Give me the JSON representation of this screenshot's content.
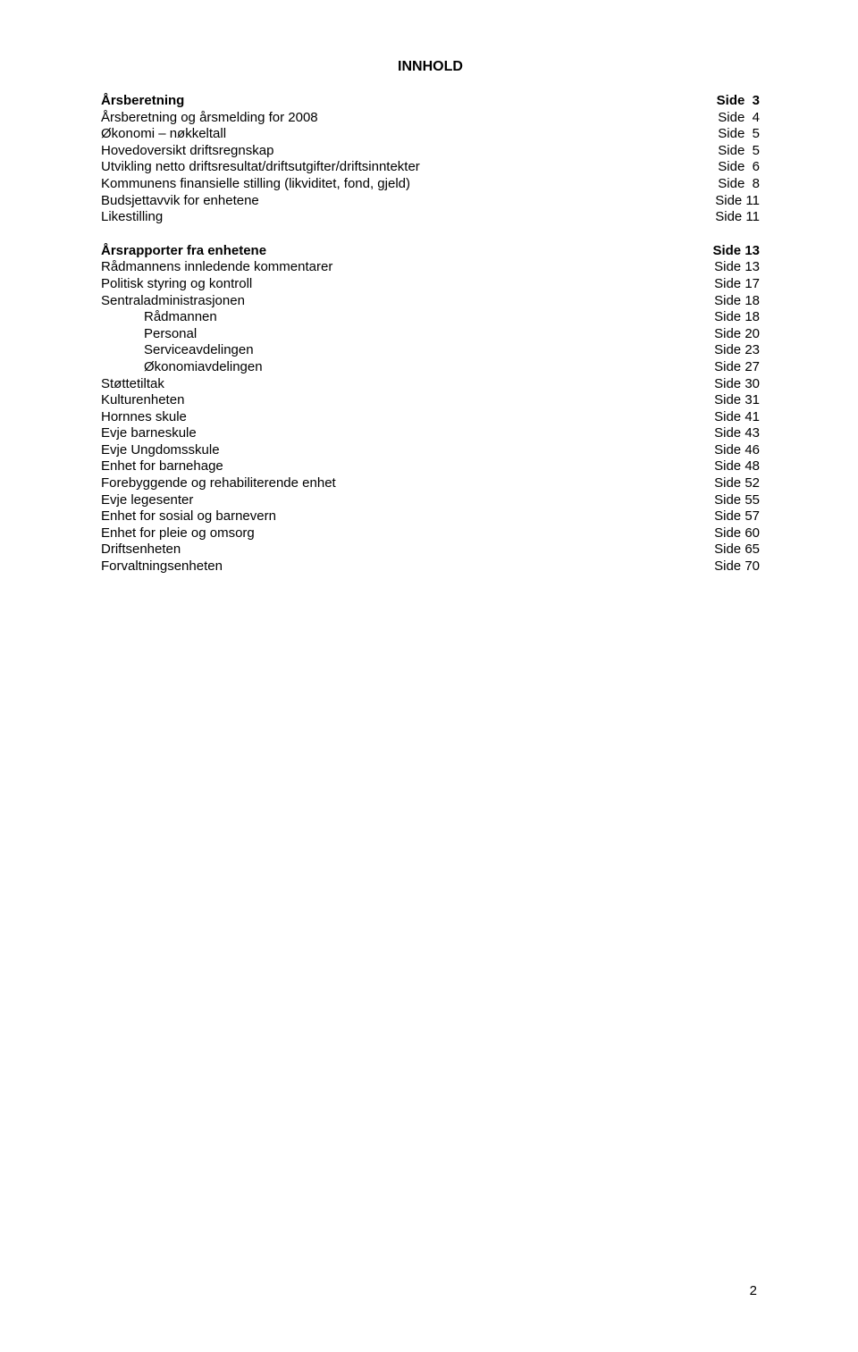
{
  "title": "INNHOLD",
  "rows": [
    {
      "label": "Årsberetning",
      "page": "Side  3",
      "bold": true,
      "indent": 0
    },
    {
      "label": "Årsberetning og årsmelding for 2008",
      "page": "Side  4",
      "bold": false,
      "indent": 0
    },
    {
      "label": "Økonomi – nøkkeltall",
      "page": "Side  5",
      "bold": false,
      "indent": 0
    },
    {
      "label": "Hovedoversikt driftsregnskap",
      "page": "Side  5",
      "bold": false,
      "indent": 0
    },
    {
      "label": "Utvikling netto driftsresultat/driftsutgifter/driftsinntekter",
      "page": "Side  6",
      "bold": false,
      "indent": 0
    },
    {
      "label": "Kommunens finansielle stilling (likviditet, fond, gjeld)",
      "page": "Side  8",
      "bold": false,
      "indent": 0
    },
    {
      "label": "Budsjettavvik for enhetene",
      "page": "Side 11",
      "bold": false,
      "indent": 0
    },
    {
      "label": "Likestilling",
      "page": "Side 11",
      "bold": false,
      "indent": 0
    },
    {
      "spacer": true
    },
    {
      "label": "Årsrapporter fra enhetene",
      "page": "Side 13",
      "bold": true,
      "indent": 0
    },
    {
      "label": "Rådmannens innledende kommentarer",
      "page": "Side 13",
      "bold": false,
      "indent": 0
    },
    {
      "label": "Politisk styring og kontroll",
      "page": "Side 17",
      "bold": false,
      "indent": 0
    },
    {
      "label": "Sentraladministrasjonen",
      "page": "Side 18",
      "bold": false,
      "indent": 0
    },
    {
      "label": "Rådmannen",
      "page": "Side 18",
      "bold": false,
      "indent": 1
    },
    {
      "label": "Personal",
      "page": "Side 20",
      "bold": false,
      "indent": 1
    },
    {
      "label": "Serviceavdelingen",
      "page": "Side 23",
      "bold": false,
      "indent": 1
    },
    {
      "label": "Økonomiavdelingen",
      "page": "Side 27",
      "bold": false,
      "indent": 1
    },
    {
      "label": "Støttetiltak",
      "page": "Side 30",
      "bold": false,
      "indent": 0
    },
    {
      "label": "Kulturenheten",
      "page": "Side 31",
      "bold": false,
      "indent": 0
    },
    {
      "label": "Hornnes skule",
      "page": "Side 41",
      "bold": false,
      "indent": 0
    },
    {
      "label": "Evje barneskule",
      "page": "Side 43",
      "bold": false,
      "indent": 0
    },
    {
      "label": "Evje Ungdomsskule",
      "page": "Side 46",
      "bold": false,
      "indent": 0
    },
    {
      "label": "Enhet for barnehage",
      "page": "Side 48",
      "bold": false,
      "indent": 0
    },
    {
      "label": "Forebyggende og rehabiliterende enhet",
      "page": "Side 52",
      "bold": false,
      "indent": 0
    },
    {
      "label": "Evje legesenter",
      "page": "Side 55",
      "bold": false,
      "indent": 0
    },
    {
      "label": "Enhet for sosial og barnevern",
      "page": "Side 57",
      "bold": false,
      "indent": 0
    },
    {
      "label": "Enhet for pleie og omsorg",
      "page": "Side 60",
      "bold": false,
      "indent": 0
    },
    {
      "label": "Driftsenheten",
      "page": "Side 65",
      "bold": false,
      "indent": 0
    },
    {
      "label": "Forvaltningsenheten",
      "page": "Side 70",
      "bold": false,
      "indent": 0
    }
  ],
  "pageNumber": "2"
}
